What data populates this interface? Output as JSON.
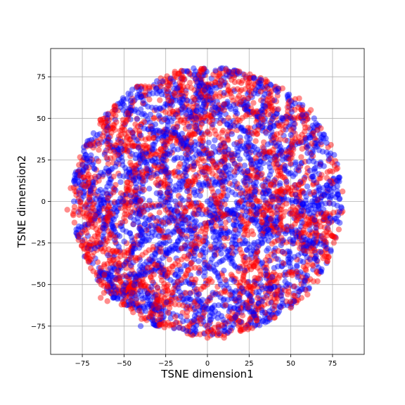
{
  "chart_data": {
    "type": "scatter",
    "title": "",
    "xlabel": "TSNE dimension1",
    "ylabel": "TSNE dimension2",
    "xlim": [
      -94,
      94
    ],
    "ylim": [
      -92,
      92
    ],
    "xticks": [
      -75,
      -50,
      -25,
      0,
      25,
      50,
      75
    ],
    "yticks": [
      -75,
      -50,
      -25,
      0,
      25,
      50,
      75
    ],
    "xtick_labels": [
      "−75",
      "−50",
      "−25",
      "0",
      "25",
      "50",
      "75"
    ],
    "ytick_labels": [
      "−75",
      "−50",
      "−25",
      "0",
      "25",
      "50",
      "75"
    ],
    "grid": true,
    "legend": "none",
    "data_radius": 81,
    "series": [
      {
        "color": "#ff0000",
        "opacity": 0.45,
        "points": [
          [
            -84,
            -5
          ],
          [
            -82,
            8
          ],
          [
            -78,
            -20
          ],
          [
            -75,
            22
          ],
          [
            -70,
            -35
          ],
          [
            -68,
            35
          ],
          [
            -65,
            -48
          ],
          [
            -62,
            45
          ],
          [
            -58,
            -55
          ],
          [
            -55,
            55
          ],
          [
            -50,
            -62
          ],
          [
            -45,
            62
          ],
          [
            -40,
            -68
          ],
          [
            -35,
            68
          ],
          [
            -30,
            -72
          ],
          [
            -25,
            72
          ],
          [
            -20,
            -76
          ],
          [
            -15,
            74
          ],
          [
            -10,
            -80
          ],
          [
            -5,
            76
          ],
          [
            0,
            -82
          ],
          [
            5,
            78
          ],
          [
            10,
            -82
          ],
          [
            15,
            76
          ],
          [
            20,
            -78
          ],
          [
            25,
            74
          ],
          [
            30,
            -74
          ],
          [
            35,
            72
          ],
          [
            40,
            -70
          ],
          [
            45,
            68
          ],
          [
            50,
            -64
          ],
          [
            55,
            62
          ],
          [
            60,
            -56
          ],
          [
            62,
            55
          ],
          [
            66,
            -48
          ],
          [
            68,
            44
          ],
          [
            72,
            -36
          ],
          [
            74,
            34
          ],
          [
            77,
            -22
          ],
          [
            78,
            20
          ],
          [
            81,
            -6
          ],
          [
            81,
            6
          ],
          [
            -60,
            -60
          ],
          [
            -64,
            -58
          ],
          [
            -62,
            -55
          ],
          [
            -72,
            -30
          ],
          [
            -74,
            -28
          ],
          [
            -46,
            -55
          ],
          [
            -44,
            -52
          ],
          [
            -40,
            -50
          ],
          [
            -20,
            40
          ],
          [
            -15,
            35
          ],
          [
            -10,
            30
          ],
          [
            -5,
            25
          ],
          [
            0,
            20
          ],
          [
            10,
            15
          ],
          [
            20,
            5
          ],
          [
            30,
            -5
          ],
          [
            40,
            -15
          ],
          [
            45,
            -25
          ],
          [
            -30,
            10
          ],
          [
            -25,
            0
          ],
          [
            -20,
            -10
          ],
          [
            -15,
            -20
          ],
          [
            -10,
            -30
          ],
          [
            -5,
            -40
          ],
          [
            0,
            -50
          ],
          [
            5,
            -55
          ],
          [
            15,
            -45
          ],
          [
            25,
            -35
          ],
          [
            35,
            30
          ],
          [
            40,
            40
          ],
          [
            30,
            50
          ],
          [
            20,
            60
          ],
          [
            10,
            55
          ],
          [
            -35,
            30
          ],
          [
            -45,
            20
          ],
          [
            -55,
            10
          ],
          [
            -50,
            -10
          ],
          [
            -40,
            -20
          ],
          [
            55,
            10
          ],
          [
            60,
            20
          ],
          [
            50,
            -5
          ],
          [
            60,
            -30
          ],
          [
            35,
            -55
          ],
          [
            -25,
            -45
          ],
          [
            -30,
            -60
          ],
          [
            0,
            60
          ],
          [
            -10,
            45
          ],
          [
            15,
            25
          ],
          [
            -65,
            15
          ],
          [
            -60,
            -5
          ],
          [
            -52,
            35
          ],
          [
            28,
            -62
          ],
          [
            45,
            50
          ],
          [
            -20,
            65
          ],
          [
            38,
            10
          ],
          [
            -8,
            -65
          ],
          [
            62,
            -10
          ],
          [
            -38,
            48
          ],
          [
            5,
            -10
          ],
          [
            -12,
            8
          ],
          [
            22,
            -20
          ],
          [
            12,
            40
          ],
          [
            -28,
            -28
          ],
          [
            48,
            30
          ],
          [
            -48,
            -35
          ],
          [
            30,
            -30
          ],
          [
            -5,
            -5
          ],
          [
            18,
            -60
          ]
        ]
      },
      {
        "color": "#0000ff",
        "opacity": 0.45,
        "points": [
          [
            -80,
            0
          ],
          [
            -80,
            12
          ],
          [
            -77,
            -15
          ],
          [
            -73,
            28
          ],
          [
            -72,
            -28
          ],
          [
            -66,
            40
          ],
          [
            -63,
            -42
          ],
          [
            -60,
            50
          ],
          [
            -54,
            -58
          ],
          [
            -50,
            58
          ],
          [
            -47,
            -62
          ],
          [
            -42,
            64
          ],
          [
            -37,
            -66
          ],
          [
            -32,
            70
          ],
          [
            -27,
            -70
          ],
          [
            -22,
            74
          ],
          [
            -17,
            -76
          ],
          [
            -12,
            78
          ],
          [
            -7,
            -78
          ],
          [
            -2,
            80
          ],
          [
            3,
            -80
          ],
          [
            8,
            80
          ],
          [
            13,
            -78
          ],
          [
            18,
            78
          ],
          [
            23,
            -76
          ],
          [
            28,
            74
          ],
          [
            33,
            -72
          ],
          [
            38,
            70
          ],
          [
            43,
            -66
          ],
          [
            48,
            64
          ],
          [
            52,
            -60
          ],
          [
            57,
            58
          ],
          [
            61,
            -52
          ],
          [
            64,
            50
          ],
          [
            68,
            -42
          ],
          [
            71,
            38
          ],
          [
            74,
            -30
          ],
          [
            76,
            28
          ],
          [
            78,
            -12
          ],
          [
            79,
            12
          ],
          [
            -65,
            -40
          ],
          [
            -60,
            -45
          ],
          [
            -55,
            -38
          ],
          [
            -70,
            5
          ],
          [
            -66,
            -2
          ],
          [
            -62,
            -10
          ],
          [
            -35,
            -70
          ],
          [
            -40,
            -75
          ],
          [
            50,
            40
          ],
          [
            55,
            35
          ],
          [
            -25,
            50
          ],
          [
            -18,
            45
          ],
          [
            -12,
            38
          ],
          [
            -5,
            30
          ],
          [
            5,
            22
          ],
          [
            15,
            10
          ],
          [
            25,
            0
          ],
          [
            35,
            -10
          ],
          [
            42,
            -20
          ],
          [
            48,
            -30
          ],
          [
            -35,
            15
          ],
          [
            -28,
            5
          ],
          [
            -22,
            -5
          ],
          [
            -18,
            -15
          ],
          [
            -12,
            -25
          ],
          [
            -8,
            -35
          ],
          [
            -2,
            -45
          ],
          [
            8,
            -50
          ],
          [
            18,
            -40
          ],
          [
            28,
            -30
          ],
          [
            38,
            25
          ],
          [
            43,
            35
          ],
          [
            33,
            45
          ],
          [
            23,
            55
          ],
          [
            12,
            60
          ],
          [
            -38,
            25
          ],
          [
            -48,
            15
          ],
          [
            -58,
            5
          ],
          [
            -52,
            -15
          ],
          [
            -42,
            -25
          ],
          [
            58,
            5
          ],
          [
            63,
            15
          ],
          [
            52,
            -10
          ],
          [
            63,
            -25
          ],
          [
            38,
            -50
          ],
          [
            -28,
            -40
          ],
          [
            -33,
            -55
          ],
          [
            2,
            65
          ],
          [
            -12,
            50
          ],
          [
            18,
            20
          ],
          [
            -68,
            20
          ],
          [
            -58,
            -20
          ],
          [
            -55,
            30
          ],
          [
            25,
            -65
          ],
          [
            42,
            55
          ],
          [
            -22,
            60
          ],
          [
            35,
            5
          ],
          [
            -5,
            -60
          ],
          [
            65,
            -5
          ],
          [
            -40,
            45
          ],
          [
            0,
            0
          ],
          [
            -15,
            12
          ],
          [
            20,
            -15
          ],
          [
            10,
            35
          ],
          [
            -25,
            -25
          ],
          [
            45,
            25
          ],
          [
            -45,
            -30
          ],
          [
            28,
            -25
          ],
          [
            -8,
            -8
          ],
          [
            15,
            -55
          ],
          [
            -5,
            10
          ],
          [
            8,
            -20
          ],
          [
            -20,
            25
          ],
          [
            30,
            15
          ],
          [
            -30,
            -10
          ],
          [
            12,
            -5
          ],
          [
            -10,
            -15
          ],
          [
            25,
            40
          ],
          [
            -40,
            0
          ],
          [
            40,
            -40
          ]
        ]
      }
    ]
  }
}
